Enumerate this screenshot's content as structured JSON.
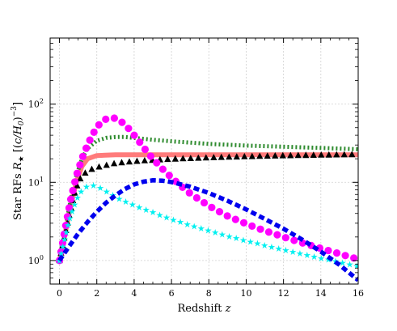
{
  "chart_data": {
    "type": "line",
    "title": "",
    "xlabel": "Redshift z",
    "xlabel_text": "Redshift ",
    "xlabel_var": "z",
    "ylabel": "Star RFs R★ [(c/H0)^-3]",
    "ylabel_text": "Star RFs ",
    "ylabel_var": "R",
    "ylabel_sub": "★",
    "ylabel_unit_open": " [(",
    "ylabel_unit_var": "c/H",
    "ylabel_unit_sub": "0",
    "ylabel_unit_close": ")",
    "ylabel_unit_exp": "−3",
    "ylabel_unit_end": "]",
    "xlim": [
      -0.5,
      16
    ],
    "ylim": [
      0.5,
      700
    ],
    "yscale": "log",
    "grid": true,
    "x_ticks": [
      0,
      2,
      4,
      6,
      8,
      10,
      12,
      14,
      16
    ],
    "x_tick_labels": [
      "0",
      "2",
      "4",
      "6",
      "8",
      "10",
      "12",
      "14",
      "16"
    ],
    "y_ticks": [
      1,
      10,
      100
    ],
    "y_tick_labels": [
      {
        "base": "10",
        "exp": "0"
      },
      {
        "base": "10",
        "exp": "1"
      },
      {
        "base": "10",
        "exp": "2"
      }
    ],
    "series": [
      {
        "style": "solid",
        "color": "#ff7b7b",
        "x": [
          0,
          0.3,
          0.6,
          0.9,
          1.2,
          1.5,
          2,
          3,
          4,
          6,
          8,
          10,
          12,
          14,
          16
        ],
        "y": [
          1.0,
          2.2,
          5.0,
          10.0,
          16.0,
          20.0,
          22.0,
          22.5,
          22.5,
          22.5,
          22.5,
          22.5,
          22.5,
          22.5,
          22.5
        ]
      },
      {
        "style": "dotted",
        "color": "#2e8b2e",
        "x": [
          0,
          0.3,
          0.6,
          0.9,
          1.2,
          1.5,
          2,
          2.5,
          3,
          3.5,
          4,
          5,
          6,
          8,
          10,
          12,
          14,
          16
        ],
        "y": [
          1.0,
          2.5,
          6.0,
          12.0,
          20.0,
          27.0,
          34.0,
          37.0,
          38.0,
          38.0,
          37.0,
          35.0,
          33.5,
          31.0,
          29.5,
          28.5,
          27.5,
          26.5
        ]
      },
      {
        "style": "triangle-markers",
        "color": "#000000",
        "x": [
          0,
          0.2,
          0.4,
          0.6,
          0.8,
          1,
          1.2,
          1.5,
          2,
          2.5,
          3,
          4,
          5,
          6,
          7,
          8,
          9,
          10,
          11,
          12,
          13,
          14,
          15,
          16
        ],
        "y": [
          1.0,
          1.7,
          2.8,
          4.5,
          7.0,
          10.0,
          12.0,
          14.0,
          15.5,
          16.5,
          17.5,
          18.5,
          19.2,
          19.8,
          20.2,
          20.6,
          21.0,
          21.3,
          21.6,
          21.9,
          22.1,
          22.3,
          22.5,
          22.7
        ]
      },
      {
        "style": "circle-markers",
        "color": "#ff00ff",
        "x": [
          0,
          0.3,
          0.6,
          0.9,
          1.2,
          1.5,
          1.8,
          2.1,
          2.4,
          2.7,
          3,
          3.3,
          3.6,
          3.9,
          4.2,
          4.5,
          5,
          5.5,
          6,
          6.5,
          7,
          7.5,
          8,
          8.5,
          9,
          9.5,
          10,
          10.5,
          11,
          11.5,
          12,
          12.5,
          13,
          13.5,
          14,
          14.5,
          15,
          15.5,
          16
        ],
        "y": [
          1.0,
          2.5,
          6.0,
          12.0,
          20.0,
          30.0,
          42.0,
          54.0,
          63.0,
          67.0,
          66.0,
          60.0,
          52.0,
          43.0,
          35.0,
          28.0,
          20.0,
          15.0,
          11.5,
          9.0,
          7.2,
          6.0,
          5.0,
          4.3,
          3.7,
          3.3,
          2.95,
          2.65,
          2.4,
          2.2,
          2.0,
          1.83,
          1.68,
          1.55,
          1.43,
          1.32,
          1.22,
          1.12,
          1.04
        ]
      },
      {
        "style": "star-markers",
        "color": "#00f0f0",
        "x": [
          0,
          0.3,
          0.6,
          0.9,
          1.2,
          1.5,
          1.8,
          2.1,
          2.4,
          2.8,
          3.2,
          3.6,
          4,
          4.5,
          5,
          5.5,
          6,
          6.5,
          7,
          7.5,
          8,
          8.5,
          9,
          9.5,
          10,
          10.5,
          11,
          11.5,
          12,
          12.5,
          13,
          13.5,
          14,
          14.5,
          15,
          15.5,
          16
        ],
        "y": [
          1.0,
          2.0,
          3.8,
          6.0,
          8.0,
          9.0,
          9.2,
          8.8,
          8.0,
          7.0,
          6.2,
          5.6,
          5.1,
          4.6,
          4.15,
          3.75,
          3.4,
          3.1,
          2.85,
          2.62,
          2.42,
          2.24,
          2.08,
          1.93,
          1.8,
          1.68,
          1.57,
          1.47,
          1.38,
          1.3,
          1.22,
          1.15,
          1.08,
          1.02,
          0.96,
          0.9,
          0.85
        ]
      },
      {
        "style": "dashed",
        "color": "#0000ee",
        "x": [
          0,
          0.5,
          1,
          1.5,
          2,
          2.5,
          3,
          3.5,
          4,
          4.5,
          5,
          5.5,
          6,
          7,
          8,
          9,
          10,
          11,
          12,
          13,
          14,
          15,
          16
        ],
        "y": [
          1.0,
          1.5,
          2.2,
          3.1,
          4.2,
          5.5,
          6.8,
          8.2,
          9.4,
          10.2,
          10.6,
          10.5,
          10.1,
          8.8,
          7.3,
          5.8,
          4.5,
          3.4,
          2.55,
          1.85,
          1.3,
          0.88,
          0.56
        ]
      }
    ]
  }
}
